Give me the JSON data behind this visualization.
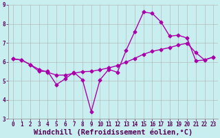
{
  "xlabel": "Windchill (Refroidissement éolien,°C)",
  "background_color": "#c8eef0",
  "grid_color": "#b0b0b0",
  "line_color": "#aa00aa",
  "xlim_min": -0.5,
  "xlim_max": 23.5,
  "ylim_min": 3,
  "ylim_max": 9,
  "xticks": [
    0,
    1,
    2,
    3,
    4,
    5,
    6,
    7,
    8,
    9,
    10,
    11,
    12,
    13,
    14,
    15,
    16,
    17,
    18,
    19,
    20,
    21,
    22,
    23
  ],
  "yticks": [
    3,
    4,
    5,
    6,
    7,
    8,
    9
  ],
  "line1_x": [
    0,
    1,
    2,
    3,
    4,
    5,
    6,
    7,
    8,
    9,
    10,
    11,
    12,
    13,
    14,
    15,
    16,
    17,
    18,
    19,
    20,
    21,
    22,
    23
  ],
  "line1_y": [
    6.15,
    6.1,
    5.85,
    5.5,
    5.5,
    4.8,
    5.1,
    5.45,
    5.05,
    3.38,
    5.05,
    5.6,
    5.45,
    6.6,
    7.6,
    8.62,
    8.55,
    8.1,
    7.35,
    7.4,
    7.25,
    6.05,
    6.1,
    6.25
  ],
  "line2_x": [
    0,
    1,
    2,
    3,
    4,
    5,
    6,
    7,
    8,
    9,
    10,
    11,
    12,
    13,
    14,
    15,
    16,
    17,
    18,
    19,
    20,
    21,
    22,
    23
  ],
  "line2_y": [
    6.15,
    6.1,
    5.85,
    5.6,
    5.45,
    5.3,
    5.3,
    5.4,
    5.48,
    5.5,
    5.58,
    5.68,
    5.8,
    5.98,
    6.18,
    6.4,
    6.55,
    6.65,
    6.75,
    6.88,
    6.98,
    6.48,
    6.1,
    6.25
  ],
  "marker": "D",
  "marker_size": 2.5,
  "line_width": 1.0,
  "tick_fontsize": 5.5,
  "xlabel_fontsize": 7.5
}
